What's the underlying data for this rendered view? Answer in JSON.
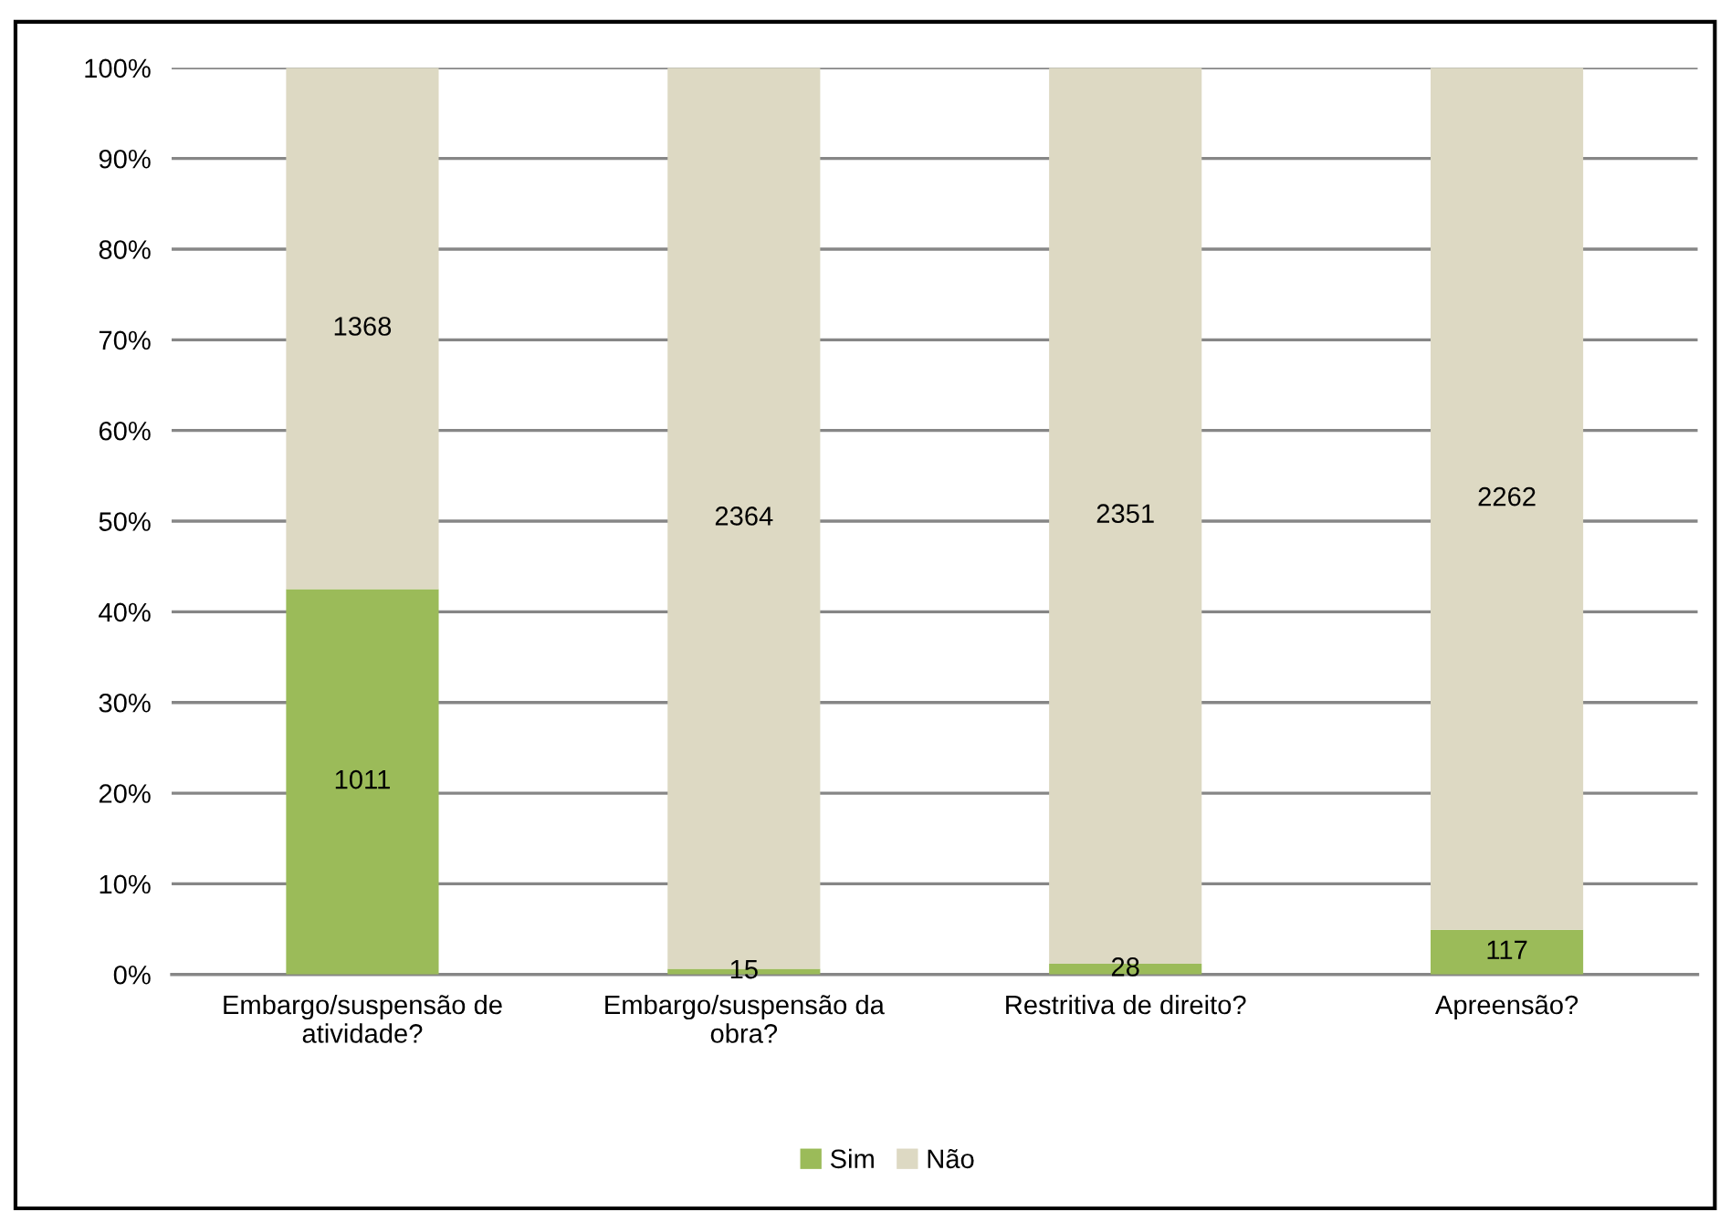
{
  "chart_data": {
    "type": "bar",
    "stacked": true,
    "categories": [
      "Embargo/suspensão de\natividade?",
      "Embargo/suspensão da\nobra?",
      "Restritiva de direito?",
      "Apreensão?"
    ],
    "series": [
      {
        "name": "Sim",
        "color": "#9bbb59",
        "axis": "y2",
        "values": [
          1011,
          15,
          28,
          117
        ]
      },
      {
        "name": "Não",
        "color": "#ddd9c3",
        "axis": "y2",
        "values": [
          1368,
          2364,
          2351,
          2262
        ]
      }
    ],
    "data_labels": true,
    "ylim": [
      0,
      100
    ],
    "yticks": [
      {
        "value": 0,
        "label": "0%"
      },
      {
        "value": 10,
        "label": "10%"
      },
      {
        "value": 20,
        "label": "20%"
      },
      {
        "value": 30,
        "label": "30%"
      },
      {
        "value": 40,
        "label": "40%"
      },
      {
        "value": 50,
        "label": "50%"
      },
      {
        "value": 60,
        "label": "60%"
      },
      {
        "value": 70,
        "label": "70%"
      },
      {
        "value": 80,
        "label": "80%"
      },
      {
        "value": 90,
        "label": "90%"
      },
      {
        "value": 100,
        "label": "100%"
      }
    ],
    "y2lim": [
      0,
      2379
    ],
    "grid": "y",
    "legend": "bottom"
  }
}
